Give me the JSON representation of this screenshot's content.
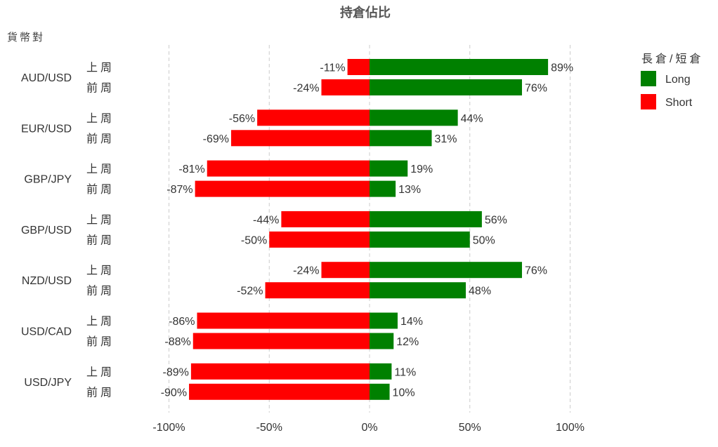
{
  "chart_data": {
    "type": "bar",
    "orientation": "horizontal",
    "title": "持倉佔比",
    "ylabel": "貨幣對",
    "xlim": [
      -100,
      100
    ],
    "xticks": [
      -100,
      -50,
      0,
      50,
      100
    ],
    "xtick_labels": [
      "-100%",
      "-50%",
      "0%",
      "50%",
      "100%"
    ],
    "grid": "vertical dashed",
    "legend_position": "top-right",
    "legend_title": "長倉/短倉",
    "colors": {
      "Long": "#008000",
      "Short": "#ff0000"
    },
    "series_names": [
      "Long",
      "Short"
    ],
    "week_labels": [
      "上周",
      "前周"
    ],
    "categories": [
      "AUD/USD",
      "EUR/USD",
      "GBP/JPY",
      "GBP/USD",
      "NZD/USD",
      "USD/CAD",
      "USD/JPY"
    ],
    "data": [
      {
        "pair": "AUD/USD",
        "rows": [
          {
            "week": "上周",
            "long": 89,
            "short": -11
          },
          {
            "week": "前周",
            "long": 76,
            "short": -24
          }
        ]
      },
      {
        "pair": "EUR/USD",
        "rows": [
          {
            "week": "上周",
            "long": 44,
            "short": -56
          },
          {
            "week": "前周",
            "long": 31,
            "short": -69
          }
        ]
      },
      {
        "pair": "GBP/JPY",
        "rows": [
          {
            "week": "上周",
            "long": 19,
            "short": -81
          },
          {
            "week": "前周",
            "long": 13,
            "short": -87
          }
        ]
      },
      {
        "pair": "GBP/USD",
        "rows": [
          {
            "week": "上周",
            "long": 56,
            "short": -44
          },
          {
            "week": "前周",
            "long": 50,
            "short": -50
          }
        ]
      },
      {
        "pair": "NZD/USD",
        "rows": [
          {
            "week": "上周",
            "long": 76,
            "short": -24
          },
          {
            "week": "前周",
            "long": 48,
            "short": -52
          }
        ]
      },
      {
        "pair": "USD/CAD",
        "rows": [
          {
            "week": "上周",
            "long": 14,
            "short": -86
          },
          {
            "week": "前周",
            "long": 12,
            "short": -88
          }
        ]
      },
      {
        "pair": "USD/JPY",
        "rows": [
          {
            "week": "上周",
            "long": 11,
            "short": -89
          },
          {
            "week": "前周",
            "long": 10,
            "short": -90
          }
        ]
      }
    ]
  }
}
